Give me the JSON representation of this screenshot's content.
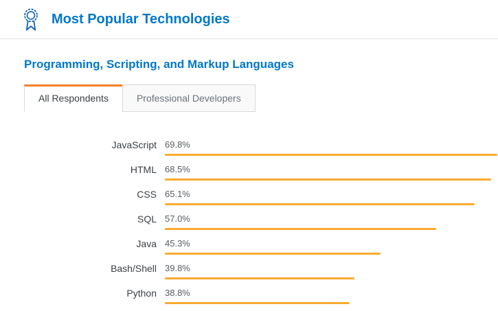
{
  "header": {
    "title": "Most Popular Technologies",
    "icon": "ribbon-award-icon"
  },
  "section": {
    "title": "Programming, Scripting, and Markup Languages"
  },
  "tabs": [
    {
      "label": "All Respondents",
      "active": true
    },
    {
      "label": "Professional Developers",
      "active": false
    }
  ],
  "colors": {
    "accent_blue": "#0077cc",
    "tab_active_orange": "#f48024",
    "bar": "#fbaa30"
  },
  "chart_data": {
    "type": "bar",
    "orientation": "horizontal",
    "title": "Programming, Scripting, and Markup Languages",
    "categories": [
      "JavaScript",
      "HTML",
      "CSS",
      "SQL",
      "Java",
      "Bash/Shell",
      "Python"
    ],
    "values": [
      69.8,
      68.5,
      65.1,
      57.0,
      45.3,
      39.8,
      38.8
    ],
    "value_labels": [
      "69.8%",
      "68.5%",
      "65.1%",
      "57.0%",
      "45.3%",
      "39.8%",
      "38.8%"
    ],
    "xlabel": "",
    "ylabel": "",
    "xlim": [
      0,
      70
    ],
    "grid": false,
    "legend": "none"
  }
}
